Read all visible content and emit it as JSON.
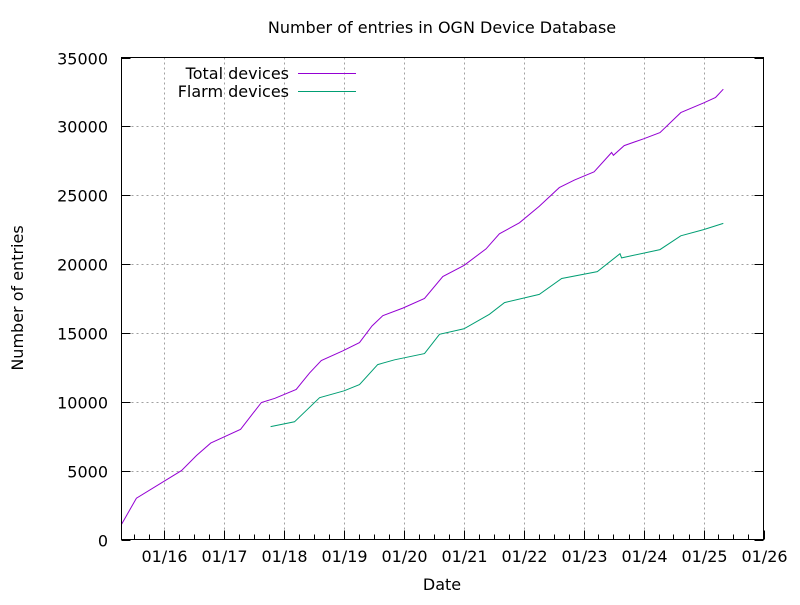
{
  "chart_data": {
    "type": "line",
    "title": "Number of entries in OGN Device Database",
    "xlabel": "Date",
    "ylabel": "Number of entries",
    "xlim": [
      "2015-04-15",
      "2026-01-01"
    ],
    "ylim": [
      0,
      35000
    ],
    "x_ticks": [
      "01/16",
      "01/17",
      "01/18",
      "01/19",
      "01/20",
      "01/21",
      "01/22",
      "01/23",
      "01/24",
      "01/25",
      "01/26"
    ],
    "x_tick_dates": [
      "2016-01-01",
      "2017-01-01",
      "2018-01-01",
      "2019-01-01",
      "2020-01-01",
      "2021-01-01",
      "2022-01-01",
      "2023-01-01",
      "2024-01-01",
      "2025-01-01",
      "2026-01-01"
    ],
    "y_ticks": [
      0,
      5000,
      10000,
      15000,
      20000,
      25000,
      30000,
      35000
    ],
    "grid": true,
    "legend_position": "top-left",
    "series": [
      {
        "name": "Total devices",
        "color": "#9400d3",
        "x": [
          "2015-04-15",
          "2015-07-15",
          "2016-04-15",
          "2016-07-15",
          "2016-10-10",
          "2017-04-10",
          "2017-08-15",
          "2017-11-05",
          "2018-03-15",
          "2018-06-05",
          "2018-08-15",
          "2018-12-25",
          "2019-04-05",
          "2019-06-20",
          "2019-08-25",
          "2019-12-25",
          "2020-05-05",
          "2020-08-25",
          "2021-01-01",
          "2021-05-15",
          "2021-08-05",
          "2021-12-05",
          "2022-04-05",
          "2022-08-05",
          "2022-11-05",
          "2023-03-05",
          "2023-06-20",
          "2023-07-01",
          "2023-09-05",
          "2024-01-01",
          "2024-04-10",
          "2024-08-15",
          "2025-01-01",
          "2025-03-15",
          "2025-05-01"
        ],
        "y": [
          1100,
          3000,
          5000,
          6100,
          7000,
          8000,
          9950,
          10250,
          10900,
          12100,
          13000,
          13700,
          14300,
          15500,
          16250,
          16800,
          17500,
          19100,
          19900,
          21100,
          22200,
          23000,
          24200,
          25550,
          26100,
          26700,
          28100,
          27900,
          28600,
          29100,
          29550,
          31000,
          31700,
          32100,
          32700
        ]
      },
      {
        "name": "Flarm devices",
        "color": "#009e73",
        "x": [
          "2017-10-10",
          "2018-03-05",
          "2018-08-05",
          "2019-01-01",
          "2019-04-05",
          "2019-07-25",
          "2019-11-05",
          "2020-05-05",
          "2020-08-05",
          "2021-01-01",
          "2021-06-05",
          "2021-09-05",
          "2022-04-05",
          "2022-08-20",
          "2023-03-25",
          "2023-08-10",
          "2023-08-20",
          "2024-04-10",
          "2024-08-15",
          "2025-01-01",
          "2025-05-01"
        ],
        "y": [
          8200,
          8550,
          10300,
          10800,
          11250,
          12700,
          13050,
          13500,
          14900,
          15300,
          16350,
          17200,
          17800,
          18950,
          19450,
          20750,
          20450,
          21050,
          22050,
          22500,
          22950
        ]
      }
    ]
  }
}
